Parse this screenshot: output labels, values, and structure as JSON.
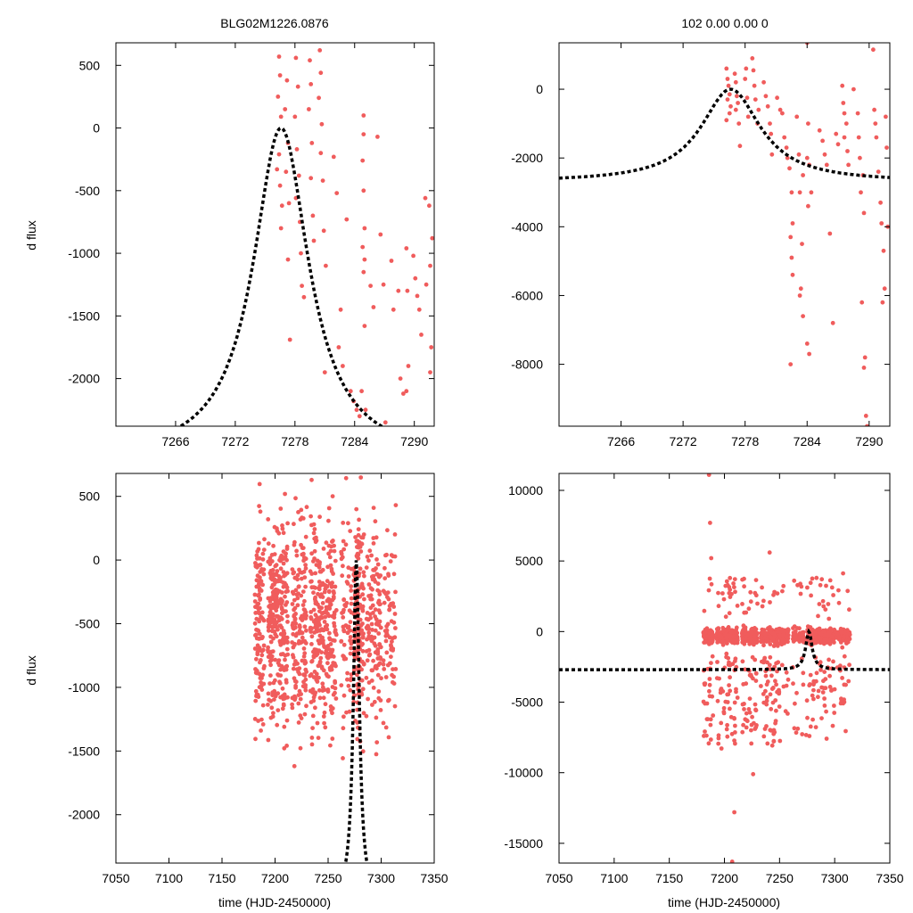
{
  "chart_data": [
    {
      "id": "top-left",
      "type": "scatter",
      "title": "BLG02M1226.0876",
      "xlabel": "",
      "ylabel": "d flux",
      "xlim": [
        7260,
        7292
      ],
      "ylim": [
        -2380,
        680
      ],
      "xticks": [
        7266,
        7272,
        7278,
        7284,
        7290
      ],
      "yticks": [
        500,
        0,
        -500,
        -1000,
        -1500,
        -2000
      ],
      "model": {
        "t0": 7276.6,
        "tE": 3.4,
        "peak": 0,
        "base": -2650
      },
      "points": [
        [
          7276.4,
          570
        ],
        [
          7276.5,
          420
        ],
        [
          7276.3,
          250
        ],
        [
          7276.6,
          90
        ],
        [
          7276.4,
          -210
        ],
        [
          7276.2,
          -330
        ],
        [
          7276.5,
          -460
        ],
        [
          7276.7,
          -620
        ],
        [
          7276.6,
          -800
        ],
        [
          7277.2,
          380
        ],
        [
          7277.0,
          150
        ],
        [
          7277.3,
          -120
        ],
        [
          7277.1,
          -350
        ],
        [
          7277.4,
          -600
        ],
        [
          7277.5,
          -1690
        ],
        [
          7277.3,
          -1050
        ],
        [
          7278.1,
          560
        ],
        [
          7278.3,
          330
        ],
        [
          7278.0,
          90
        ],
        [
          7278.2,
          -170
        ],
        [
          7278.4,
          -380
        ],
        [
          7278.1,
          -560
        ],
        [
          7278.5,
          -750
        ],
        [
          7278.6,
          -1000
        ],
        [
          7278.9,
          -1350
        ],
        [
          7278.7,
          -1260
        ],
        [
          7279.5,
          540
        ],
        [
          7279.6,
          350
        ],
        [
          7279.4,
          150
        ],
        [
          7279.7,
          -120
        ],
        [
          7279.6,
          -400
        ],
        [
          7279.8,
          -700
        ],
        [
          7279.9,
          -900
        ],
        [
          7280.5,
          620
        ],
        [
          7280.6,
          440
        ],
        [
          7280.4,
          240
        ],
        [
          7280.7,
          30
        ],
        [
          7280.6,
          -200
        ],
        [
          7280.8,
          -420
        ],
        [
          7280.9,
          -820
        ],
        [
          7281.1,
          -1100
        ],
        [
          7281.0,
          -1950
        ],
        [
          7281.9,
          -230
        ],
        [
          7282.2,
          -520
        ],
        [
          7282.6,
          -1450
        ],
        [
          7282.4,
          -1750
        ],
        [
          7282.8,
          -1900
        ],
        [
          7283.2,
          -730
        ],
        [
          7283.6,
          -2100
        ],
        [
          7283.9,
          -2180
        ],
        [
          7284.2,
          -2250
        ],
        [
          7284.5,
          -2300
        ],
        [
          7284.9,
          100
        ],
        [
          7284.9,
          -50
        ],
        [
          7284.8,
          -260
        ],
        [
          7284.9,
          -500
        ],
        [
          7285.0,
          -800
        ],
        [
          7284.8,
          -950
        ],
        [
          7285.0,
          -1050
        ],
        [
          7284.9,
          -1150
        ],
        [
          7285.0,
          -1580
        ],
        [
          7284.7,
          -2100
        ],
        [
          7285.1,
          -2250
        ],
        [
          7285.6,
          -1260
        ],
        [
          7285.9,
          -1430
        ],
        [
          7286.3,
          -70
        ],
        [
          7286.6,
          -850
        ],
        [
          7286.9,
          -1250
        ],
        [
          7287.1,
          -2350
        ],
        [
          7287.7,
          -1060
        ],
        [
          7287.9,
          -1450
        ],
        [
          7288.4,
          -1300
        ],
        [
          7288.6,
          -2000
        ],
        [
          7288.9,
          -2120
        ],
        [
          7289.2,
          -960
        ],
        [
          7289.3,
          -1300
        ],
        [
          7289.4,
          -1900
        ],
        [
          7289.2,
          -2100
        ],
        [
          7289.9,
          -1020
        ],
        [
          7290.1,
          -1200
        ],
        [
          7290.3,
          -1340
        ],
        [
          7290.5,
          -1450
        ],
        [
          7290.7,
          -1650
        ],
        [
          7291.1,
          -560
        ],
        [
          7291.2,
          -1250
        ],
        [
          7291.5,
          -620
        ],
        [
          7291.6,
          -1100
        ],
        [
          7291.7,
          -1750
        ],
        [
          7291.6,
          -1950
        ],
        [
          7291.8,
          -880
        ]
      ]
    },
    {
      "id": "top-right",
      "type": "scatter",
      "title": "102  0.00  0.00  0",
      "xlabel": "",
      "ylabel": "",
      "xlim": [
        7260,
        7292
      ],
      "ylim": [
        -9800,
        1350
      ],
      "xticks": [
        7266,
        7272,
        7278,
        7284,
        7290
      ],
      "yticks": [
        0,
        -2000,
        -4000,
        -6000,
        -8000
      ],
      "model": {
        "t0": 7276.6,
        "tE": 3.5,
        "peak": 0,
        "base": -2700
      },
      "points": [
        [
          7276.2,
          600
        ],
        [
          7276.3,
          300
        ],
        [
          7276.4,
          100
        ],
        [
          7276.5,
          -150
        ],
        [
          7276.3,
          -300
        ],
        [
          7276.6,
          -500
        ],
        [
          7276.5,
          -700
        ],
        [
          7276.2,
          -900
        ],
        [
          7277.0,
          450
        ],
        [
          7277.1,
          200
        ],
        [
          7277.2,
          -200
        ],
        [
          7277.3,
          -400
        ],
        [
          7277.1,
          -600
        ],
        [
          7277.4,
          -1000
        ],
        [
          7277.5,
          -1650
        ],
        [
          7278.1,
          600
        ],
        [
          7278.0,
          300
        ],
        [
          7278.2,
          -250
        ],
        [
          7278.3,
          -800
        ],
        [
          7278.7,
          900
        ],
        [
          7278.8,
          550
        ],
        [
          7278.9,
          100
        ],
        [
          7279.0,
          -300
        ],
        [
          7279.3,
          -600
        ],
        [
          7279.2,
          -1000
        ],
        [
          7279.8,
          200
        ],
        [
          7280.0,
          -200
        ],
        [
          7280.2,
          -500
        ],
        [
          7280.4,
          -1000
        ],
        [
          7280.5,
          -1300
        ],
        [
          7280.6,
          -1900
        ],
        [
          7281.1,
          -250
        ],
        [
          7281.4,
          -600
        ],
        [
          7281.6,
          -700
        ],
        [
          7281.8,
          -1400
        ],
        [
          7282.0,
          -1700
        ],
        [
          7282.1,
          -2000
        ],
        [
          7282.3,
          -2300
        ],
        [
          7282.5,
          -3000
        ],
        [
          7282.6,
          -3900
        ],
        [
          7282.4,
          -4300
        ],
        [
          7282.5,
          -4900
        ],
        [
          7282.6,
          -5400
        ],
        [
          7282.4,
          -8000
        ],
        [
          7283.0,
          -800
        ],
        [
          7283.2,
          -1900
        ],
        [
          7283.3,
          -3000
        ],
        [
          7283.5,
          -4500
        ],
        [
          7283.4,
          -5800
        ],
        [
          7283.6,
          -6600
        ],
        [
          7283.3,
          -6000
        ],
        [
          7283.6,
          -2500
        ],
        [
          7284.0,
          1350
        ],
        [
          7284.1,
          -1000
        ],
        [
          7284.2,
          -2200
        ],
        [
          7284.4,
          -3000
        ],
        [
          7284.1,
          -3400
        ],
        [
          7284.0,
          -7400
        ],
        [
          7284.2,
          -7700
        ],
        [
          7284.0,
          -2000
        ],
        [
          7285.2,
          -1200
        ],
        [
          7285.5,
          -1500
        ],
        [
          7285.7,
          -1900
        ],
        [
          7285.9,
          -2200
        ],
        [
          7286.2,
          -4200
        ],
        [
          7286.5,
          -6800
        ],
        [
          7286.8,
          -1300
        ],
        [
          7287.0,
          -1600
        ],
        [
          7287.4,
          100
        ],
        [
          7287.5,
          -400
        ],
        [
          7287.6,
          -700
        ],
        [
          7287.8,
          -1000
        ],
        [
          7287.6,
          -1400
        ],
        [
          7287.9,
          -1800
        ],
        [
          7288.0,
          -2200
        ],
        [
          7288.5,
          0
        ],
        [
          7288.9,
          -700
        ],
        [
          7289.0,
          -1400
        ],
        [
          7289.1,
          -2000
        ],
        [
          7289.4,
          -2500
        ],
        [
          7289.2,
          -3000
        ],
        [
          7289.5,
          -3600
        ],
        [
          7289.3,
          -6200
        ],
        [
          7289.6,
          -7800
        ],
        [
          7289.5,
          -8100
        ],
        [
          7289.7,
          -9500
        ],
        [
          7289.8,
          -9800
        ],
        [
          7290.4,
          1150
        ],
        [
          7290.5,
          -600
        ],
        [
          7290.6,
          -1000
        ],
        [
          7290.7,
          -1400
        ],
        [
          7290.9,
          -2400
        ],
        [
          7291.1,
          -3300
        ],
        [
          7291.2,
          -3900
        ],
        [
          7291.4,
          -4700
        ],
        [
          7291.5,
          -5800
        ],
        [
          7291.3,
          -6200
        ],
        [
          7291.6,
          -800
        ],
        [
          7291.7,
          -1700
        ],
        [
          7291.8,
          -4000
        ]
      ]
    },
    {
      "id": "bottom-left",
      "type": "scatter",
      "title": "",
      "xlabel": "time (HJD-2450000)",
      "ylabel": "d flux",
      "xlim": [
        7050,
        7350
      ],
      "ylim": [
        -2380,
        680
      ],
      "xticks": [
        7050,
        7100,
        7150,
        7200,
        7250,
        7300,
        7350
      ],
      "yticks": [
        500,
        0,
        -500,
        -1000,
        -1500,
        -2000
      ],
      "model": {
        "t0": 7276.6,
        "tE": 3.4,
        "peak": 0,
        "base": -2650
      },
      "points": "generated"
    },
    {
      "id": "bottom-right",
      "type": "scatter",
      "title": "",
      "xlabel": "time (HJD-2450000)",
      "ylabel": "",
      "xlim": [
        7050,
        7350
      ],
      "ylim": [
        -16400,
        11200
      ],
      "xticks": [
        7050,
        7100,
        7150,
        7200,
        7250,
        7300,
        7350
      ],
      "yticks": [
        10000,
        5000,
        0,
        -5000,
        -10000,
        -15000
      ],
      "model": {
        "t0": 7276.6,
        "tE": 3.5,
        "peak": 0,
        "base": -2700
      },
      "points": "generated"
    }
  ]
}
